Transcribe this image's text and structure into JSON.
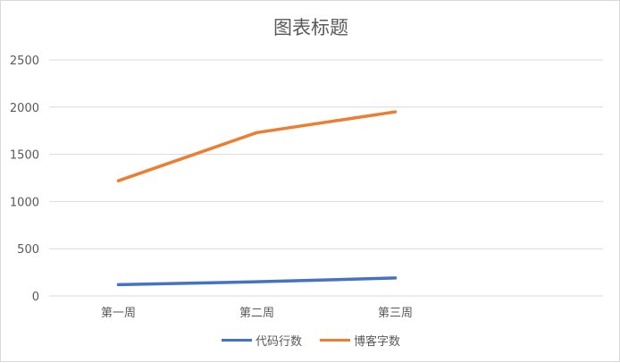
{
  "chart_data": {
    "type": "line",
    "title": "图表标题",
    "categories": [
      "第一周",
      "第二周",
      "第三周"
    ],
    "series": [
      {
        "name": "代码行数",
        "values": [
          120,
          150,
          190
        ],
        "color": "#4472c4"
      },
      {
        "name": "博客字数",
        "values": [
          1220,
          1730,
          1950
        ],
        "color": "#ed7d31"
      }
    ],
    "ylim": [
      0,
      2500
    ],
    "yticks": [
      0,
      500,
      1000,
      1500,
      2000,
      2500
    ],
    "grid": true,
    "legend_position": "bottom"
  }
}
